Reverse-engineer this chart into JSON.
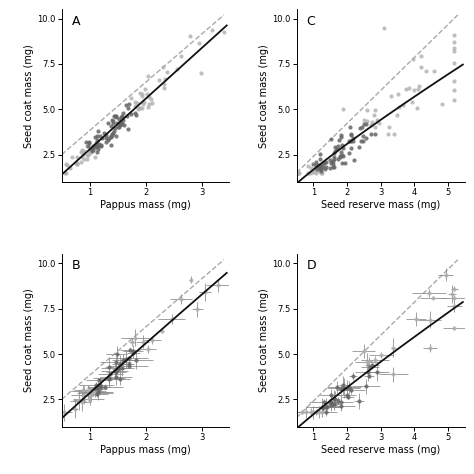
{
  "panels": [
    "A",
    "B",
    "C",
    "D"
  ],
  "background_color": "#ffffff",
  "point_color_light": "#b0b0b0",
  "point_color_dark": "#666666",
  "line_color_solid": "#111111",
  "line_color_dashed": "#aaaaaa",
  "panel_A": {
    "xlabel": "Pappus mass (mg)",
    "ylabel": "Seed coat mass (mg)",
    "xlim": [
      0.5,
      3.5
    ],
    "ylim": [
      1.0,
      10.5
    ],
    "xticks": [
      1,
      2,
      3
    ],
    "yticks": [
      2.5,
      5.0,
      7.5,
      10.0
    ],
    "reg_x0": 0.5,
    "reg_x1": 3.4,
    "reg_y0": 1.8,
    "reg_y1": 9.3,
    "iso_x0": 0.5,
    "iso_x1": 3.4,
    "iso_y0": 2.5,
    "iso_y1": 10.2
  },
  "panel_B": {
    "xlabel": "Pappus mass (mg)",
    "ylabel": "Seed coat mass (mg)",
    "xlim": [
      0.5,
      3.5
    ],
    "ylim": [
      1.0,
      10.5
    ],
    "xticks": [
      1,
      2,
      3
    ],
    "yticks": [
      2.5,
      5.0,
      7.5,
      10.0
    ],
    "reg_x0": 0.5,
    "reg_x1": 3.4,
    "reg_y0": 1.8,
    "reg_y1": 9.3,
    "iso_x0": 0.5,
    "iso_x1": 3.4,
    "iso_y0": 2.5,
    "iso_y1": 10.2
  },
  "panel_C": {
    "xlabel": "Seed reserve mass (mg)",
    "ylabel": "Seed coat mass (mg)",
    "xlim": [
      0.5,
      5.5
    ],
    "ylim": [
      1.0,
      10.5
    ],
    "xticks": [
      1,
      2,
      3,
      4,
      5
    ],
    "yticks": [
      2.5,
      5.0,
      7.5,
      10.0
    ],
    "reg_x0": 0.5,
    "reg_x1": 5.3,
    "reg_y0": 1.5,
    "reg_y1": 7.8,
    "iso_x0": 0.5,
    "iso_x1": 5.3,
    "iso_y0": 1.5,
    "iso_y1": 10.2
  },
  "panel_D": {
    "xlabel": "Seed reserve mass (mg)",
    "ylabel": "Seed coat mass (mg)",
    "xlim": [
      0.5,
      5.5
    ],
    "ylim": [
      1.0,
      10.5
    ],
    "xticks": [
      1,
      2,
      3,
      4,
      5
    ],
    "yticks": [
      2.5,
      5.0,
      7.5,
      10.0
    ],
    "reg_x0": 0.5,
    "reg_x1": 5.3,
    "reg_y0": 1.5,
    "reg_y1": 7.8,
    "iso_x0": 0.5,
    "iso_x1": 5.3,
    "iso_y0": 1.5,
    "iso_y1": 10.2
  },
  "fontsize_label": 7,
  "fontsize_tick": 6,
  "fontsize_panel": 9
}
